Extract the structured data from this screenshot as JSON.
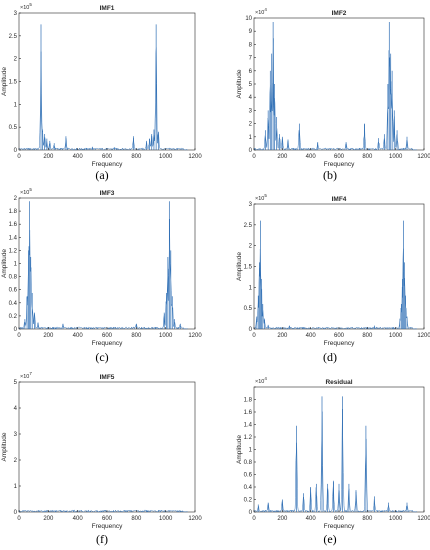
{
  "chart_data": [
    {
      "type": "line",
      "title": "IMF1",
      "xlabel": "Frequency",
      "ylabel": "Amplitude",
      "exponent": "5",
      "caption": "(a)",
      "xlim": [
        0,
        1200
      ],
      "ylim": [
        0,
        3
      ],
      "xticks": [
        0,
        200,
        400,
        600,
        800,
        1000,
        1200
      ],
      "yticks": [
        0,
        0.5,
        1,
        1.5,
        2,
        2.5,
        3
      ],
      "xtick_labels": [
        "0",
        "200",
        "400",
        "600",
        "800",
        "1000",
        "1200"
      ],
      "ytick_labels": [
        "0",
        "0.5",
        "1",
        "1.5",
        "2",
        "2.5",
        "3"
      ],
      "series_color": "#2f6fb5",
      "peaks": [
        {
          "x": 150,
          "y": 2.75
        },
        {
          "x": 160,
          "y": 0.45
        },
        {
          "x": 175,
          "y": 0.35
        },
        {
          "x": 190,
          "y": 0.25
        },
        {
          "x": 210,
          "y": 0.2
        },
        {
          "x": 240,
          "y": 0.15
        },
        {
          "x": 320,
          "y": 0.3
        },
        {
          "x": 500,
          "y": 0.07
        },
        {
          "x": 650,
          "y": 0.06
        },
        {
          "x": 780,
          "y": 0.3
        },
        {
          "x": 870,
          "y": 0.2
        },
        {
          "x": 890,
          "y": 0.25
        },
        {
          "x": 905,
          "y": 0.35
        },
        {
          "x": 920,
          "y": 0.45
        },
        {
          "x": 935,
          "y": 2.75
        },
        {
          "x": 950,
          "y": 0.4
        }
      ]
    },
    {
      "type": "line",
      "title": "IMF2",
      "xlabel": "Frequency",
      "ylabel": "Amplitude",
      "exponent": "4",
      "caption": "(b)",
      "xlim": [
        0,
        1200
      ],
      "ylim": [
        0,
        10
      ],
      "xticks": [
        0,
        200,
        400,
        600,
        800,
        1000,
        1200
      ],
      "yticks": [
        0,
        1,
        2,
        3,
        4,
        5,
        6,
        7,
        8,
        9,
        10
      ],
      "xtick_labels": [
        "0",
        "200",
        "400",
        "600",
        "800",
        "1000",
        "1200"
      ],
      "ytick_labels": [
        "0",
        "1",
        "2",
        "3",
        "4",
        "5",
        "6",
        "7",
        "8",
        "9",
        "10"
      ],
      "series_color": "#2f6fb5",
      "peaks": [
        {
          "x": 80,
          "y": 1.5
        },
        {
          "x": 100,
          "y": 3
        },
        {
          "x": 115,
          "y": 6
        },
        {
          "x": 125,
          "y": 7.3
        },
        {
          "x": 135,
          "y": 9.7
        },
        {
          "x": 145,
          "y": 5
        },
        {
          "x": 160,
          "y": 2.5
        },
        {
          "x": 180,
          "y": 1.2
        },
        {
          "x": 200,
          "y": 1
        },
        {
          "x": 240,
          "y": 0.8
        },
        {
          "x": 320,
          "y": 2
        },
        {
          "x": 450,
          "y": 0.6
        },
        {
          "x": 650,
          "y": 0.6
        },
        {
          "x": 780,
          "y": 2
        },
        {
          "x": 880,
          "y": 0.9
        },
        {
          "x": 920,
          "y": 1.2
        },
        {
          "x": 945,
          "y": 5
        },
        {
          "x": 955,
          "y": 9.7
        },
        {
          "x": 965,
          "y": 7.3
        },
        {
          "x": 975,
          "y": 6
        },
        {
          "x": 990,
          "y": 3
        },
        {
          "x": 1010,
          "y": 1.5
        },
        {
          "x": 1080,
          "y": 1
        }
      ]
    },
    {
      "type": "line",
      "title": "IMF3",
      "xlabel": "Frequency",
      "ylabel": "Amplitude",
      "exponent": "5",
      "caption": "(c)",
      "xlim": [
        0,
        1200
      ],
      "ylim": [
        0,
        2
      ],
      "xticks": [
        0,
        200,
        400,
        600,
        800,
        1000,
        1200
      ],
      "yticks": [
        0,
        0.2,
        0.4,
        0.6,
        0.8,
        1,
        1.2,
        1.4,
        1.6,
        1.8,
        2
      ],
      "xtick_labels": [
        "0",
        "200",
        "400",
        "600",
        "800",
        "1000",
        "1200"
      ],
      "ytick_labels": [
        "0",
        "0.2",
        "0.4",
        "0.6",
        "0.8",
        "1",
        "1.2",
        "1.4",
        "1.6",
        "1.8",
        "2"
      ],
      "series_color": "#2f6fb5",
      "peaks": [
        {
          "x": 40,
          "y": 0.15
        },
        {
          "x": 55,
          "y": 0.5
        },
        {
          "x": 65,
          "y": 1.2
        },
        {
          "x": 72,
          "y": 1.95
        },
        {
          "x": 80,
          "y": 1.1
        },
        {
          "x": 90,
          "y": 0.55
        },
        {
          "x": 105,
          "y": 0.25
        },
        {
          "x": 130,
          "y": 0.1
        },
        {
          "x": 300,
          "y": 0.08
        },
        {
          "x": 800,
          "y": 0.08
        },
        {
          "x": 990,
          "y": 0.25
        },
        {
          "x": 1005,
          "y": 0.55
        },
        {
          "x": 1015,
          "y": 1.1
        },
        {
          "x": 1025,
          "y": 1.95
        },
        {
          "x": 1035,
          "y": 1.2
        },
        {
          "x": 1045,
          "y": 0.5
        },
        {
          "x": 1060,
          "y": 0.15
        },
        {
          "x": 1100,
          "y": 0.08
        }
      ]
    },
    {
      "type": "line",
      "title": "IMF4",
      "xlabel": "Frequency",
      "ylabel": "Amplitude",
      "exponent": "5",
      "caption": "(d)",
      "xlim": [
        0,
        1200
      ],
      "ylim": [
        0,
        3
      ],
      "xticks": [
        0,
        200,
        400,
        600,
        800,
        1000,
        1200
      ],
      "yticks": [
        0,
        0.5,
        1,
        1.5,
        2,
        2.5,
        3
      ],
      "xtick_labels": [
        "0",
        "200",
        "400",
        "600",
        "800",
        "1000",
        "1200"
      ],
      "ytick_labels": [
        "0",
        "0.5",
        "1",
        "1.5",
        "2",
        "2.5",
        "3"
      ],
      "series_color": "#2f6fb5",
      "peaks": [
        {
          "x": 20,
          "y": 0.3
        },
        {
          "x": 30,
          "y": 0.8
        },
        {
          "x": 38,
          "y": 1.6
        },
        {
          "x": 45,
          "y": 2.6
        },
        {
          "x": 52,
          "y": 1.2
        },
        {
          "x": 62,
          "y": 0.6
        },
        {
          "x": 75,
          "y": 0.25
        },
        {
          "x": 100,
          "y": 0.1
        },
        {
          "x": 250,
          "y": 0.08
        },
        {
          "x": 850,
          "y": 0.08
        },
        {
          "x": 1030,
          "y": 0.25
        },
        {
          "x": 1040,
          "y": 0.6
        },
        {
          "x": 1048,
          "y": 1.2
        },
        {
          "x": 1055,
          "y": 2.6
        },
        {
          "x": 1062,
          "y": 1.6
        },
        {
          "x": 1070,
          "y": 0.8
        },
        {
          "x": 1080,
          "y": 0.3
        }
      ]
    },
    {
      "type": "line",
      "title": "IMF5",
      "xlabel": "Frequency",
      "ylabel": "Amplitude",
      "exponent": "7",
      "caption": "(f)",
      "xlim": [
        0,
        1200
      ],
      "ylim": [
        0,
        5
      ],
      "xticks": [
        0,
        200,
        400,
        600,
        800,
        1000,
        1200
      ],
      "yticks": [
        0,
        1,
        2,
        3,
        4,
        5
      ],
      "xtick_labels": [
        "0",
        "200",
        "400",
        "600",
        "800",
        "1000",
        "1200"
      ],
      "ytick_labels": [
        "0",
        "1",
        "2",
        "3",
        "4",
        "5"
      ],
      "series_color": "#2f6fb5",
      "peaks": [
        {
          "x": 5,
          "y": 0.03
        },
        {
          "x": 1090,
          "y": 0.04
        }
      ]
    },
    {
      "type": "line",
      "title": "Residual",
      "xlabel": "Frequency",
      "ylabel": "Amplitude",
      "exponent": "4",
      "caption": "(e)",
      "xlim": [
        0,
        1200
      ],
      "ylim": [
        0,
        2
      ],
      "xticks": [
        0,
        200,
        400,
        600,
        800,
        1000,
        1200
      ],
      "yticks": [
        0,
        0.2,
        0.4,
        0.6,
        0.8,
        1,
        1.2,
        1.4,
        1.6,
        1.8,
        2
      ],
      "xtick_labels": [
        "0",
        "200",
        "400",
        "600",
        "800",
        "1000",
        "1200"
      ],
      "ytick_labels": [
        "0",
        "0.2",
        "0.4",
        "0.6",
        "0.8",
        "1",
        "1.2",
        "1.4",
        "1.6",
        "1.8",
        ""
      ],
      "series_color": "#2f6fb5",
      "peaks": [
        {
          "x": 30,
          "y": 0.12
        },
        {
          "x": 100,
          "y": 0.15
        },
        {
          "x": 200,
          "y": 0.2
        },
        {
          "x": 300,
          "y": 1.38
        },
        {
          "x": 350,
          "y": 0.3
        },
        {
          "x": 400,
          "y": 0.4
        },
        {
          "x": 440,
          "y": 0.45
        },
        {
          "x": 480,
          "y": 1.85
        },
        {
          "x": 520,
          "y": 0.45
        },
        {
          "x": 560,
          "y": 0.5
        },
        {
          "x": 600,
          "y": 0.45
        },
        {
          "x": 625,
          "y": 1.85
        },
        {
          "x": 670,
          "y": 0.45
        },
        {
          "x": 720,
          "y": 0.35
        },
        {
          "x": 790,
          "y": 1.38
        },
        {
          "x": 850,
          "y": 0.25
        },
        {
          "x": 950,
          "y": 0.15
        },
        {
          "x": 1080,
          "y": 0.15
        }
      ]
    }
  ]
}
